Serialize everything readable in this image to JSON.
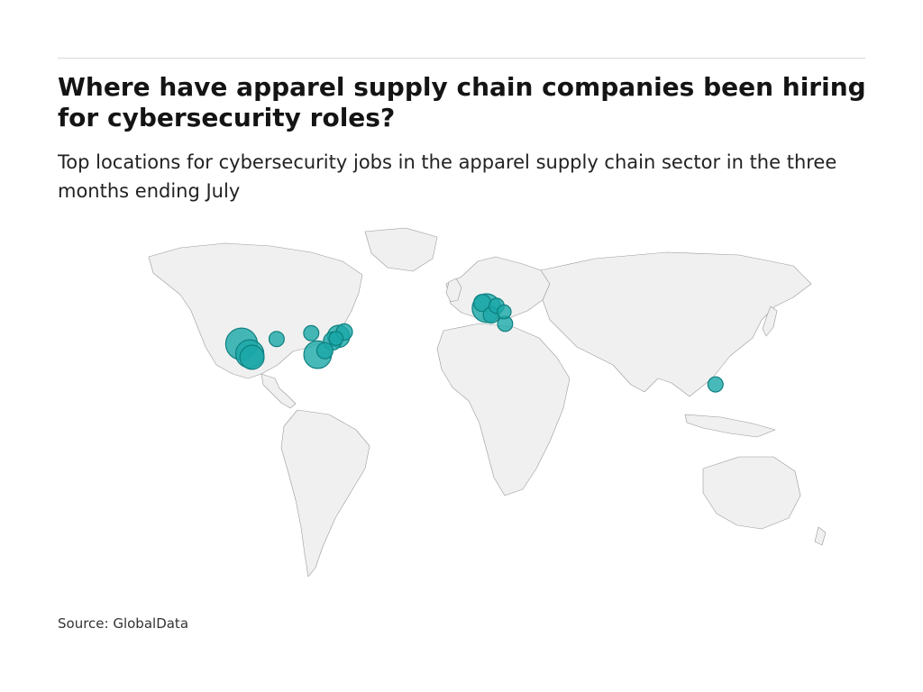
{
  "header": {
    "title": "Where have apparel supply chain companies been hiring for cybersecurity roles?",
    "subtitle": "Top locations for cybersecurity jobs in the apparel supply chain sector in the three months ending July"
  },
  "footer": {
    "source": "Source: GlobalData"
  },
  "style": {
    "bubble_fill": "#1aa8a8",
    "bubble_stroke": "#0e7f7f",
    "land": "#f0f0f0",
    "border": "#9a9a9a"
  },
  "chart_data": {
    "type": "bubble-map",
    "points": [
      {
        "lon": -122.4,
        "lat": 37.8,
        "size": 3.0
      },
      {
        "lon": -118.3,
        "lat": 34.0,
        "size": 2.3
      },
      {
        "lon": -117.2,
        "lat": 32.7,
        "size": 1.6
      },
      {
        "lon": -104.9,
        "lat": 39.7,
        "size": 0.5
      },
      {
        "lon": -87.6,
        "lat": 41.9,
        "size": 0.5
      },
      {
        "lon": -84.4,
        "lat": 33.7,
        "size": 2.2
      },
      {
        "lon": -80.8,
        "lat": 35.2,
        "size": 0.6
      },
      {
        "lon": -77.0,
        "lat": 38.9,
        "size": 0.8
      },
      {
        "lon": -74.0,
        "lat": 40.7,
        "size": 1.3
      },
      {
        "lon": -71.1,
        "lat": 42.4,
        "size": 0.6
      },
      {
        "lon": -75.2,
        "lat": 39.9,
        "size": 0.4
      },
      {
        "lon": -0.1,
        "lat": 51.5,
        "size": 2.4
      },
      {
        "lon": -2.2,
        "lat": 53.5,
        "size": 0.7
      },
      {
        "lon": 2.3,
        "lat": 48.9,
        "size": 0.6
      },
      {
        "lon": 4.9,
        "lat": 52.4,
        "size": 0.5
      },
      {
        "lon": 8.7,
        "lat": 50.1,
        "size": 0.4
      },
      {
        "lon": 9.2,
        "lat": 45.5,
        "size": 0.5
      },
      {
        "lon": 114.2,
        "lat": 22.3,
        "size": 0.5
      }
    ]
  }
}
